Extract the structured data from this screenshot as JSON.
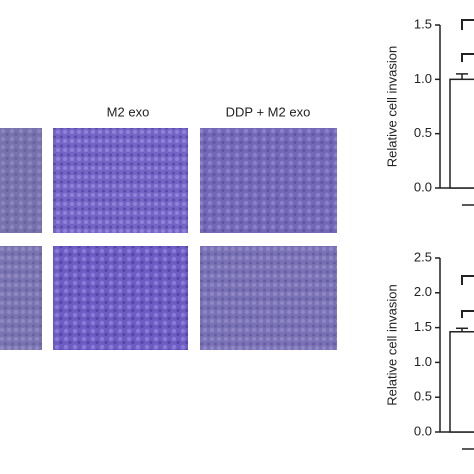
{
  "panel_labels": [
    "M2 exo",
    "DDP + M2 exo"
  ],
  "chart_data": [
    {
      "type": "bar",
      "y_label": "Relative cell invasion",
      "categories": [
        null
      ],
      "values": [
        1.0
      ],
      "errors": [
        0.05
      ],
      "color": "#ffffff",
      "ylim": [
        0,
        1.5
      ],
      "yticks": [
        {
          "value": 0,
          "label": "0.0"
        },
        {
          "value": 0.5,
          "label": "0.5"
        },
        {
          "value": 1,
          "label": "1.0"
        },
        {
          "value": 1.5,
          "label": "1.5"
        }
      ]
    },
    {
      "type": "bar",
      "y_label": "Relative cell invasion",
      "categories": [
        null
      ],
      "values": [
        1.44
      ],
      "errors": [
        0.05
      ],
      "color": "#ffffff",
      "ylim": [
        0,
        2.5
      ],
      "yticks": [
        {
          "value": 0,
          "label": "0.0"
        },
        {
          "value": 0.5,
          "label": "0.5"
        },
        {
          "value": 1,
          "label": "1.0"
        },
        {
          "value": 1.5,
          "label": "1.5"
        },
        {
          "value": 2,
          "label": "2.0"
        },
        {
          "value": 2.5,
          "label": "2.5"
        }
      ]
    }
  ]
}
